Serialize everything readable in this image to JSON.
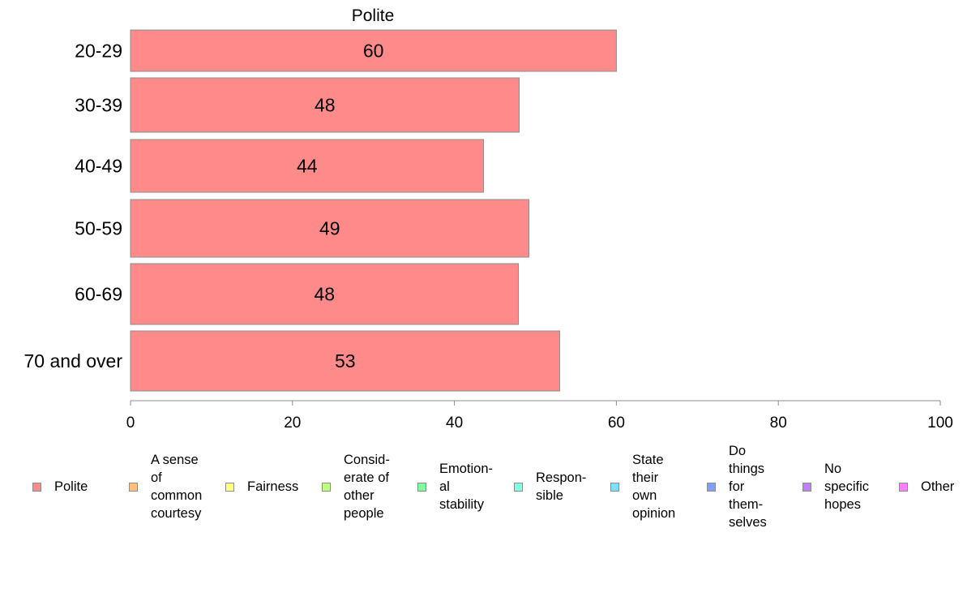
{
  "chart_data": {
    "type": "bar",
    "orientation": "horizontal",
    "title": "Polite",
    "categories": [
      "20-29",
      "30-39",
      "40-49",
      "50-59",
      "60-69",
      "70 and over"
    ],
    "series": [
      {
        "name": "Polite",
        "values": [
          60,
          48,
          43.6,
          49.2,
          47.9,
          53
        ],
        "labels": [
          "60",
          "48",
          "44",
          "49",
          "48",
          "53"
        ]
      }
    ],
    "xlim": [
      0,
      100
    ],
    "xticks": [
      "0",
      "20",
      "40",
      "60",
      "80",
      "100"
    ],
    "grid": false,
    "bar_color": "#ff8a8a",
    "bar_edge_color": "#8c8c8c",
    "legend_placement": "bottom",
    "legend": [
      {
        "label": "Polite",
        "color": "#ff8a8a"
      },
      {
        "label": "A sense\nof\ncommon\ncourtesy",
        "color": "#ffbf80"
      },
      {
        "label": "Fairness",
        "color": "#ffff80"
      },
      {
        "label": "Consid-\nerate of\nother\npeople",
        "color": "#bfff80"
      },
      {
        "label": "Emotion-\nal\nstability",
        "color": "#80ff9f"
      },
      {
        "label": "Respon-\nsible",
        "color": "#80ffdf"
      },
      {
        "label": "State\ntheir\nown\nopinion",
        "color": "#80dfff"
      },
      {
        "label": "Do\nthings\nfor\nthem-\nselves",
        "color": "#809fff"
      },
      {
        "label": "No\nspecific\nhopes",
        "color": "#bf80ff"
      },
      {
        "label": "Other",
        "color": "#ff80ff"
      }
    ]
  }
}
